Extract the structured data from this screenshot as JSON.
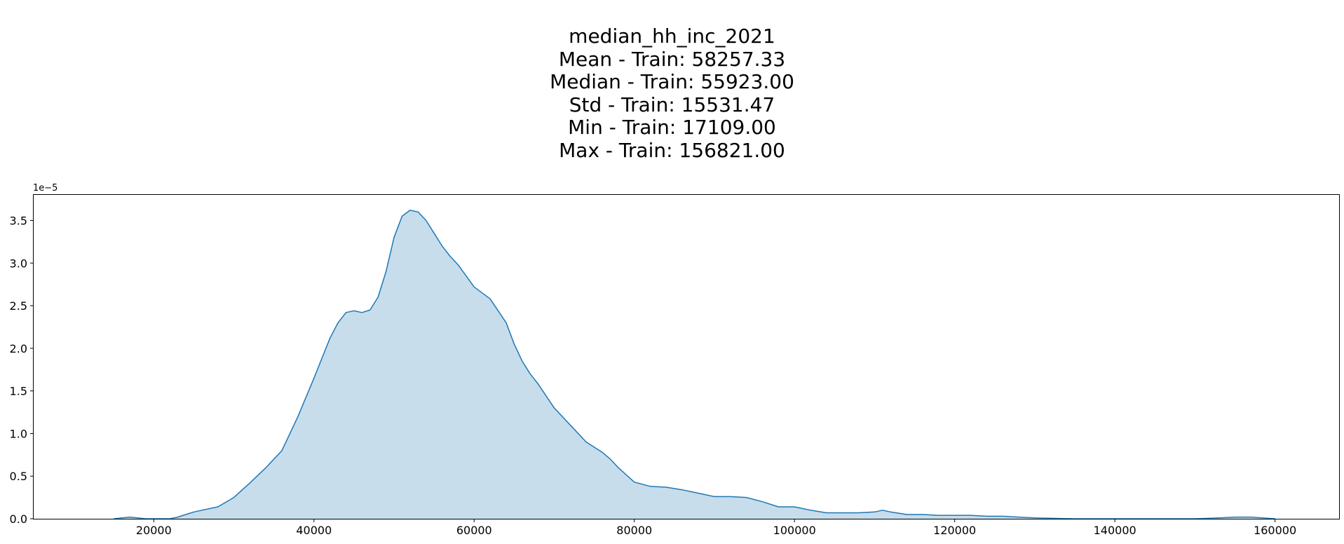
{
  "chart_data": {
    "type": "area",
    "title_lines": [
      "median_hh_inc_2021",
      "Mean - Train: 58257.33",
      "Median - Train: 55923.00",
      "Std - Train: 15531.47",
      "Min - Train: 17109.00",
      "Max - Train: 156821.00"
    ],
    "xlabel": "",
    "ylabel": "",
    "y_offset_label": "1e−5",
    "xlim": [
      5000,
      168000
    ],
    "ylim": [
      0,
      3.8
    ],
    "x_ticks": [
      20000,
      40000,
      60000,
      80000,
      100000,
      120000,
      140000,
      160000
    ],
    "y_ticks": [
      0.0,
      0.5,
      1.0,
      1.5,
      2.0,
      2.5,
      3.0,
      3.5
    ],
    "y_tick_labels": [
      "0.0",
      "0.5",
      "1.0",
      "1.5",
      "2.0",
      "2.5",
      "3.0",
      "3.5"
    ],
    "grid": false,
    "line_color": "#1f77b4",
    "fill_color": "#1f77b4",
    "fill_opacity": 0.25,
    "series": [
      {
        "x": [
          15000,
          17000,
          19000,
          21000,
          22000,
          23000,
          24000,
          25000,
          26000,
          28000,
          30000,
          32000,
          34000,
          36000,
          37000,
          38000,
          40000,
          42000,
          43000,
          44000,
          45000,
          46000,
          47000,
          48000,
          49000,
          50000,
          51000,
          52000,
          53000,
          54000,
          55000,
          56000,
          57000,
          58000,
          60000,
          62000,
          64000,
          65000,
          66000,
          67000,
          68000,
          70000,
          72000,
          74000,
          76000,
          77000,
          78000,
          80000,
          82000,
          84000,
          86000,
          88000,
          90000,
          92000,
          94000,
          96000,
          98000,
          100000,
          102000,
          104000,
          106000,
          108000,
          110000,
          111000,
          112000,
          114000,
          116000,
          118000,
          120000,
          122000,
          124000,
          126000,
          128000,
          130000,
          135000,
          140000,
          145000,
          150000,
          153000,
          155000,
          157000,
          160000
        ],
        "y": [
          0.0,
          0.02,
          0.0,
          0.0,
          0.0,
          0.02,
          0.05,
          0.08,
          0.1,
          0.14,
          0.25,
          0.42,
          0.6,
          0.8,
          1.0,
          1.2,
          1.65,
          2.12,
          2.3,
          2.42,
          2.44,
          2.42,
          2.45,
          2.6,
          2.9,
          3.3,
          3.55,
          3.62,
          3.6,
          3.5,
          3.35,
          3.2,
          3.08,
          2.98,
          2.72,
          2.58,
          2.3,
          2.05,
          1.85,
          1.7,
          1.58,
          1.3,
          1.1,
          0.9,
          0.78,
          0.7,
          0.6,
          0.43,
          0.38,
          0.37,
          0.34,
          0.3,
          0.26,
          0.26,
          0.25,
          0.2,
          0.14,
          0.14,
          0.1,
          0.07,
          0.07,
          0.07,
          0.08,
          0.1,
          0.08,
          0.05,
          0.05,
          0.04,
          0.04,
          0.04,
          0.03,
          0.03,
          0.02,
          0.01,
          0.0,
          0.0,
          0.0,
          0.0,
          0.01,
          0.02,
          0.02,
          0.0
        ]
      }
    ]
  }
}
